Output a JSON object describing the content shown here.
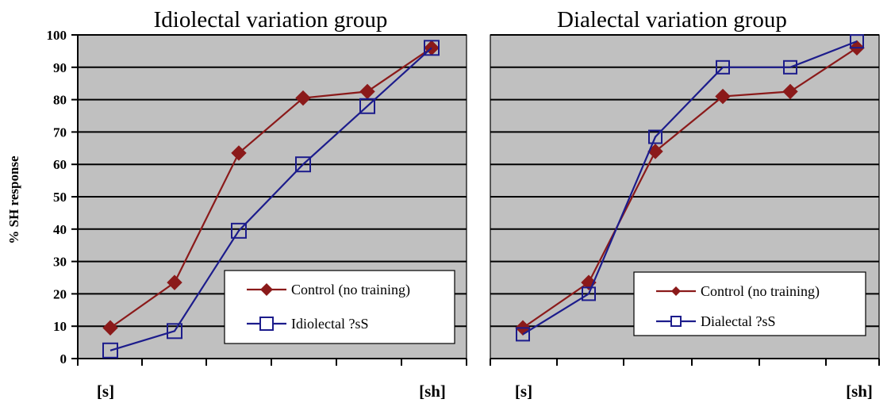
{
  "figure": {
    "ylabel": "% SH response"
  },
  "chart_data": [
    {
      "type": "line",
      "title": "Idiolectal variation group",
      "ylabel": "% SH response",
      "ylim": [
        0,
        100
      ],
      "yticks": [
        0,
        10,
        20,
        30,
        40,
        50,
        60,
        70,
        80,
        90,
        100
      ],
      "x_endpoint_labels": [
        "[s]",
        "[sh]"
      ],
      "x": [
        1,
        2,
        3,
        4,
        5,
        6
      ],
      "grid": true,
      "legend_position": "bottom-right",
      "series": [
        {
          "name": "Control (no training)",
          "marker": "filled-diamond",
          "color": "#8b1a1a",
          "values": [
            9.5,
            23.5,
            63.5,
            80.5,
            82.5,
            96
          ]
        },
        {
          "name": "Idiolectal ?sS",
          "marker": "open-square",
          "color": "#1c1c8c",
          "values": [
            2.5,
            8.5,
            39.5,
            60,
            78,
            96
          ]
        }
      ]
    },
    {
      "type": "line",
      "title": "Dialectal variation group",
      "ylim": [
        0,
        100
      ],
      "x_endpoint_labels": [
        "[s]",
        "[sh]"
      ],
      "x": [
        1,
        2,
        3,
        4,
        5,
        6
      ],
      "grid": true,
      "legend_position": "bottom-right",
      "series": [
        {
          "name": "Control (no training)",
          "marker": "filled-diamond",
          "color": "#8b1a1a",
          "values": [
            9.5,
            23.5,
            64,
            81,
            82.5,
            96
          ]
        },
        {
          "name": "Dialectal ?sS",
          "marker": "open-square",
          "color": "#1c1c8c",
          "values": [
            7.5,
            20,
            68.5,
            90,
            90,
            98
          ]
        }
      ]
    }
  ]
}
